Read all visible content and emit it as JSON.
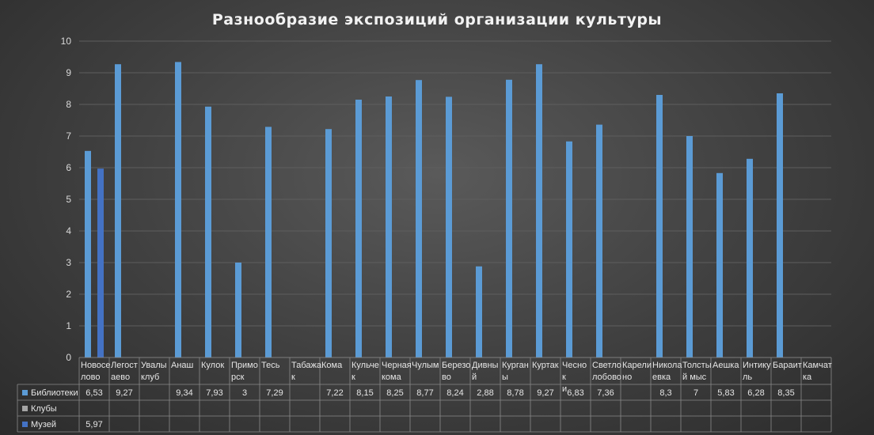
{
  "chart_data": {
    "type": "bar",
    "title": "Разнообразие экспозиций организации культуры",
    "ylim": [
      0,
      10
    ],
    "yticks": [
      0,
      1,
      2,
      3,
      4,
      5,
      6,
      7,
      8,
      9,
      10
    ],
    "categories": [
      [
        "Новосе",
        "лово"
      ],
      [
        "Легост",
        "аево"
      ],
      [
        "Увалы",
        "клуб"
      ],
      [
        "Анаш"
      ],
      [
        "Кулок"
      ],
      [
        "Примо",
        "рск"
      ],
      [
        "Тесь"
      ],
      [
        "Табажа",
        "к"
      ],
      [
        "Кома"
      ],
      [
        "Кульче",
        "к"
      ],
      [
        "Черная",
        "кома"
      ],
      [
        "Чулым"
      ],
      [
        "Березо",
        "во"
      ],
      [
        "Дивны",
        "й"
      ],
      [
        "Курган",
        "ы"
      ],
      [
        "Куртак"
      ],
      [
        "Чесно",
        "к",
        "и"
      ],
      [
        "Светло",
        "лобово"
      ],
      [
        "Карели",
        "но"
      ],
      [
        "Никола",
        "евка"
      ],
      [
        "Толсты",
        "й мыс"
      ],
      [
        "Аешка"
      ],
      [
        "Интику",
        "ль"
      ],
      [
        "Бараит"
      ],
      [
        "Камчат",
        "ка"
      ]
    ],
    "series": [
      {
        "name": "Библиотеки",
        "color": "#5b9bd5",
        "values": [
          6.53,
          9.27,
          null,
          9.34,
          7.93,
          3,
          7.29,
          null,
          7.22,
          8.15,
          8.25,
          8.77,
          8.24,
          2.88,
          8.78,
          9.27,
          6.83,
          7.36,
          null,
          8.3,
          7,
          5.83,
          6.28,
          8.35,
          null
        ],
        "labels": [
          "6,53",
          "9,27",
          "",
          "9,34",
          "7,93",
          "3",
          "7,29",
          "",
          "7,22",
          "8,15",
          "8,25",
          "8,77",
          "8,24",
          "2,88",
          "8,78",
          "9,27",
          "6,83",
          "7,36",
          "",
          "8,3",
          "7",
          "5,83",
          "6,28",
          "8,35",
          ""
        ]
      },
      {
        "name": "Клубы",
        "color": "#a5a5a5",
        "values": [
          null,
          null,
          null,
          null,
          null,
          null,
          null,
          null,
          null,
          null,
          null,
          null,
          null,
          null,
          null,
          null,
          null,
          null,
          null,
          null,
          null,
          null,
          null,
          null,
          null
        ],
        "labels": [
          "",
          "",
          "",
          "",
          "",
          "",
          "",
          "",
          "",
          "",
          "",
          "",
          "",
          "",
          "",
          "",
          "",
          "",
          "",
          "",
          "",
          "",
          "",
          "",
          ""
        ]
      },
      {
        "name": "Музей",
        "color": "#4472c4",
        "values": [
          5.97,
          null,
          null,
          null,
          null,
          null,
          null,
          null,
          null,
          null,
          null,
          null,
          null,
          null,
          null,
          null,
          null,
          null,
          null,
          null,
          null,
          null,
          null,
          null,
          null
        ],
        "labels": [
          "5,97",
          "",
          "",
          "",
          "",
          "",
          "",
          "",
          "",
          "",
          "",
          "",
          "",
          "",
          "",
          "",
          "",
          "",
          "",
          "",
          "",
          "",
          "",
          "",
          ""
        ]
      }
    ],
    "grid": true,
    "legend": "data-table"
  }
}
